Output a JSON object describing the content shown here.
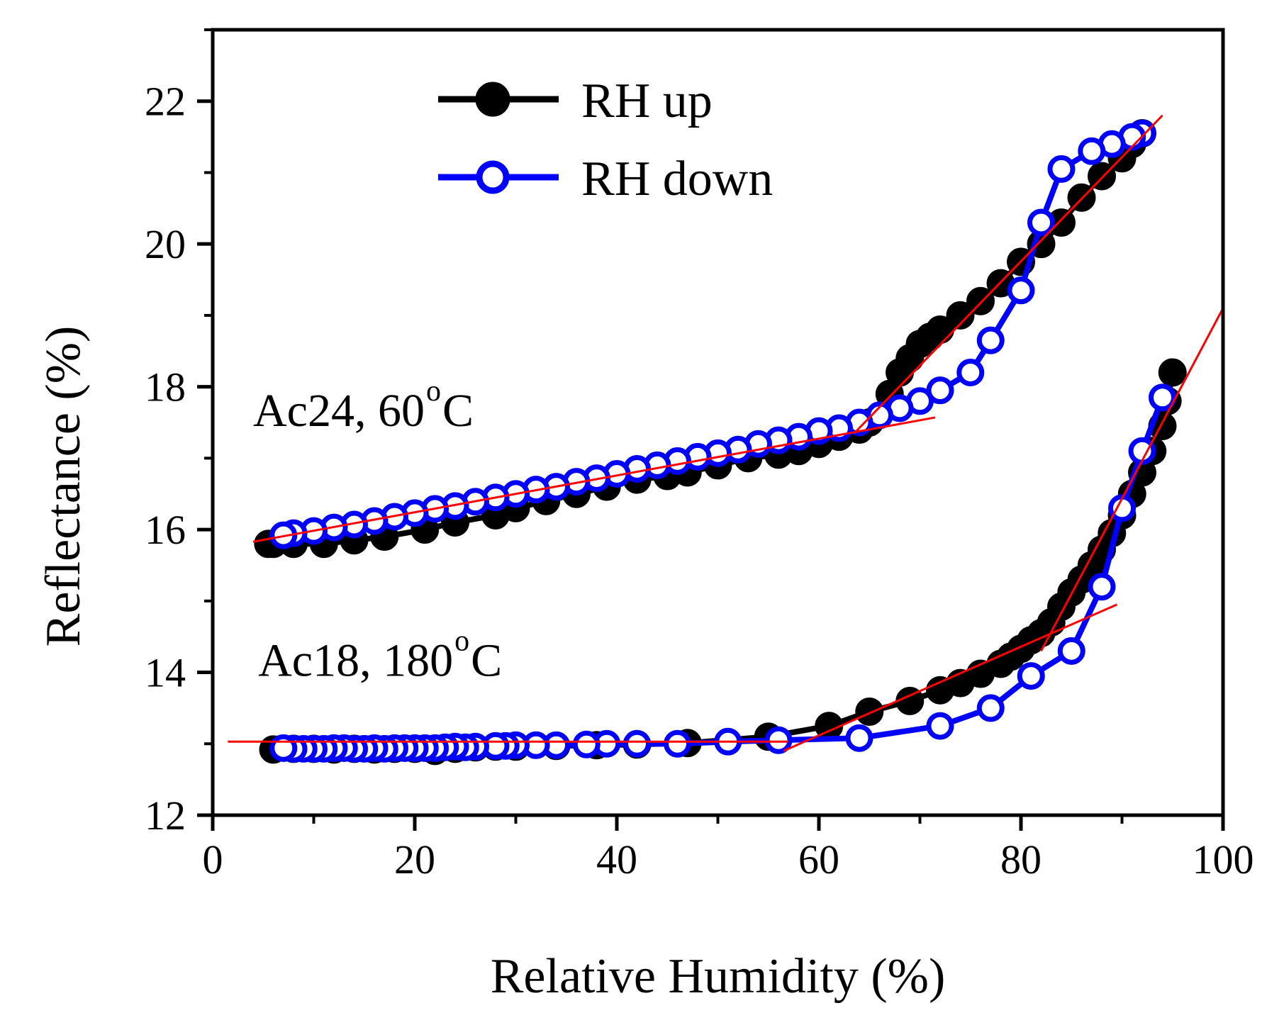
{
  "chart_data": {
    "type": "scatter",
    "title": "",
    "xlabel": "Relative Humidity (%)",
    "ylabel": "Reflectance (%)",
    "xlim": [
      0,
      100
    ],
    "ylim": [
      12,
      23
    ],
    "xticks": [
      "0",
      "20",
      "40",
      "60",
      "80",
      "100"
    ],
    "yticks": [
      "12",
      "14",
      "16",
      "18",
      "20",
      "22"
    ],
    "grid": false,
    "legend_position": "top-center",
    "legend": [
      {
        "name": "RH up",
        "color": "#000000",
        "marker": "filled-circle"
      },
      {
        "name": "RH down",
        "color": "#0000ff",
        "marker": "open-circle"
      }
    ],
    "annotations": [
      {
        "text": "Ac24, 60",
        "sup": "o",
        "tail": "C",
        "x": 4,
        "y": 17.45
      },
      {
        "text": "Ac18, 180",
        "sup": "o",
        "tail": "C",
        "x": 4.5,
        "y": 13.95
      }
    ],
    "series": [
      {
        "name": "RH up",
        "sample": "Ac24, 60°C",
        "color": "#000000",
        "marker": "filled",
        "x": [
          5.5,
          6,
          8,
          11,
          14,
          17,
          21,
          24,
          28,
          30,
          33,
          36,
          39,
          42,
          45,
          47,
          50,
          53,
          56,
          58,
          60,
          62,
          64,
          65,
          67,
          68,
          69,
          70,
          71,
          72,
          74,
          76,
          78,
          80,
          82,
          84,
          86,
          88,
          90,
          91,
          92
        ],
        "y": [
          15.8,
          15.8,
          15.8,
          15.8,
          15.85,
          15.9,
          16.0,
          16.1,
          16.2,
          16.3,
          16.4,
          16.5,
          16.6,
          16.7,
          16.75,
          16.8,
          16.9,
          17.0,
          17.05,
          17.1,
          17.2,
          17.3,
          17.4,
          17.5,
          17.9,
          18.2,
          18.4,
          18.6,
          18.7,
          18.8,
          19.0,
          19.2,
          19.45,
          19.75,
          20.0,
          20.3,
          20.65,
          20.95,
          21.2,
          21.4,
          21.55
        ]
      },
      {
        "name": "RH down",
        "sample": "Ac24, 60°C",
        "color": "#0000ff",
        "marker": "open",
        "x": [
          92,
          91,
          89,
          87,
          84,
          82,
          80,
          77,
          75,
          72,
          70,
          68,
          66,
          64,
          62,
          60,
          58,
          56,
          54,
          52,
          50,
          48,
          46,
          44,
          42,
          40,
          38,
          36,
          34,
          32,
          30,
          28,
          26,
          24,
          22,
          20,
          18,
          16,
          14,
          12,
          10,
          8,
          7
        ],
        "y": [
          21.55,
          21.5,
          21.4,
          21.3,
          21.05,
          20.3,
          19.35,
          18.65,
          18.2,
          17.95,
          17.8,
          17.7,
          17.6,
          17.5,
          17.42,
          17.38,
          17.3,
          17.25,
          17.2,
          17.12,
          17.07,
          17.02,
          16.96,
          16.9,
          16.85,
          16.78,
          16.72,
          16.67,
          16.6,
          16.56,
          16.5,
          16.45,
          16.39,
          16.33,
          16.29,
          16.23,
          16.18,
          16.12,
          16.07,
          16.03,
          15.98,
          15.95,
          15.92
        ]
      },
      {
        "name": "RH up",
        "sample": "Ac18, 180°C",
        "color": "#000000",
        "marker": "filled",
        "x": [
          6,
          8,
          10,
          12,
          14,
          16,
          18,
          20,
          22,
          24,
          26,
          28,
          30,
          34,
          38,
          42,
          47,
          55,
          61,
          65,
          69,
          72,
          74,
          76,
          78,
          79,
          80,
          81,
          82,
          83,
          84,
          85,
          86,
          87,
          88,
          89,
          90,
          91,
          92,
          93,
          94,
          94.5,
          95
        ],
        "y": [
          12.92,
          12.93,
          12.93,
          12.92,
          12.93,
          12.92,
          12.93,
          12.93,
          12.9,
          12.93,
          12.95,
          12.96,
          12.96,
          12.97,
          12.98,
          12.99,
          13.01,
          13.1,
          13.25,
          13.45,
          13.6,
          13.75,
          13.85,
          13.98,
          14.12,
          14.22,
          14.33,
          14.45,
          14.55,
          14.7,
          14.92,
          15.12,
          15.3,
          15.5,
          15.72,
          15.95,
          16.2,
          16.5,
          16.8,
          17.1,
          17.45,
          17.8,
          18.2
        ]
      },
      {
        "name": "RH down",
        "sample": "Ac18, 180°C",
        "color": "#0000ff",
        "marker": "open",
        "x": [
          94,
          92,
          90,
          88,
          85,
          81,
          77,
          72,
          64,
          56,
          51,
          46,
          42,
          39,
          37,
          34,
          32,
          30,
          29,
          28,
          26,
          25,
          24,
          23,
          22,
          21,
          20,
          19,
          18,
          17,
          16,
          15,
          14,
          13,
          12,
          11,
          10,
          9,
          8,
          7
        ],
        "y": [
          17.85,
          17.1,
          16.3,
          15.2,
          14.3,
          13.95,
          13.5,
          13.25,
          13.08,
          13.05,
          13.03,
          13.0,
          13.0,
          13.0,
          12.99,
          12.98,
          12.98,
          12.98,
          12.97,
          12.97,
          12.96,
          12.95,
          12.96,
          12.95,
          12.94,
          12.94,
          12.94,
          12.94,
          12.94,
          12.93,
          12.94,
          12.93,
          12.93,
          12.94,
          12.94,
          12.93,
          12.93,
          12.93,
          12.93,
          12.94
        ]
      }
    ],
    "fit_lines": [
      {
        "color": "#ff0000",
        "x": [
          4,
          71.5
        ],
        "y": [
          15.83,
          17.57
        ]
      },
      {
        "color": "#ff0000",
        "x": [
          63.5,
          94
        ],
        "y": [
          17.35,
          21.8
        ]
      },
      {
        "color": "#ff0000",
        "x": [
          1.5,
          57
        ],
        "y": [
          13.03,
          13.03
        ]
      },
      {
        "color": "#ff0000",
        "x": [
          56.5,
          89.5
        ],
        "y": [
          12.9,
          14.95
        ]
      },
      {
        "color": "#ff0000",
        "x": [
          82,
          100
        ],
        "y": [
          14.3,
          19.1
        ]
      }
    ]
  }
}
